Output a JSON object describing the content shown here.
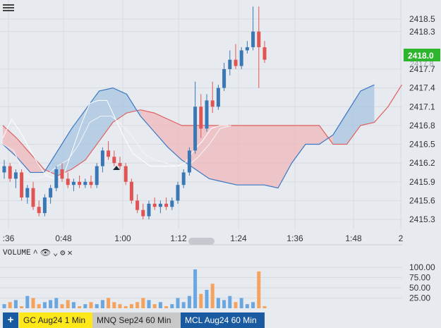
{
  "price_axis": {
    "ticks": [
      "2418.5",
      "2418.3",
      "2417.7",
      "2417.4",
      "2417.1",
      "2416.8",
      "2416.5",
      "2416.2",
      "2415.9",
      "2415.6",
      "2415.3"
    ],
    "current_price": "2418.0",
    "current_price_color": "#2db52d",
    "faint_label": "2417.8"
  },
  "time_axis": {
    "ticks": [
      ":36",
      "0:48",
      "1:00",
      "1:12",
      "1:24",
      "1:36",
      "1:48",
      "2"
    ]
  },
  "volume_panel": {
    "title": "VOLUME",
    "controls": [
      "up-caret",
      "eye",
      "down-caret",
      "gear",
      "close"
    ],
    "axis_ticks": [
      "100.00",
      "75.00",
      "50.00",
      "25.00"
    ]
  },
  "tabs": {
    "add_label": "+",
    "items": [
      {
        "label": "GC Aug24 1 Min",
        "active": true
      },
      {
        "label": "MNQ Sep24 60 Min",
        "active": false
      },
      {
        "label": "MCL Aug24 60 Min",
        "active": false
      }
    ]
  },
  "colors": {
    "bull": "#3a78b5",
    "bear": "#e05454",
    "cloud_bull": "#a7c4e0",
    "cloud_bear": "#efb8bc",
    "vol_blue": "#6aa6e0",
    "vol_orange": "#f5a35c",
    "background": "#e7eaee"
  },
  "chart_data": {
    "type": "candlestick",
    "y_ticks": [
      2415.3,
      2415.6,
      2415.9,
      2416.2,
      2416.5,
      2416.8,
      2417.1,
      2417.4,
      2417.7,
      2418.0,
      2418.3,
      2418.5
    ],
    "x_ticks": [
      ":36",
      "0:48",
      "1:00",
      "1:12",
      "1:24",
      "1:36",
      "1:48",
      "2"
    ],
    "candles": [
      [
        2416.05,
        2416.25,
        2415.95,
        2416.15
      ],
      [
        2416.15,
        2416.2,
        2415.9,
        2415.95
      ],
      [
        2415.95,
        2416.1,
        2415.8,
        2416.05
      ],
      [
        2416.05,
        2416.1,
        2415.6,
        2415.65
      ],
      [
        2415.65,
        2415.85,
        2415.55,
        2415.8
      ],
      [
        2415.8,
        2415.9,
        2415.45,
        2415.5
      ],
      [
        2415.5,
        2415.6,
        2415.35,
        2415.4
      ],
      [
        2415.4,
        2415.7,
        2415.35,
        2415.65
      ],
      [
        2415.65,
        2415.85,
        2415.55,
        2415.8
      ],
      [
        2415.8,
        2416.15,
        2415.75,
        2416.1
      ],
      [
        2416.1,
        2416.2,
        2415.9,
        2415.95
      ],
      [
        2415.95,
        2416.05,
        2415.8,
        2415.85
      ],
      [
        2415.85,
        2415.95,
        2415.75,
        2415.9
      ],
      [
        2415.9,
        2416.0,
        2415.8,
        2415.85
      ],
      [
        2415.85,
        2415.95,
        2415.8,
        2415.9
      ],
      [
        2415.9,
        2416.0,
        2415.8,
        2415.85
      ],
      [
        2415.85,
        2416.2,
        2415.8,
        2416.15
      ],
      [
        2416.15,
        2416.45,
        2416.05,
        2416.4
      ],
      [
        2416.4,
        2416.55,
        2416.25,
        2416.3
      ],
      [
        2416.3,
        2416.4,
        2416.15,
        2416.2
      ],
      [
        2416.2,
        2416.3,
        2416.1,
        2416.15
      ],
      [
        2416.15,
        2416.2,
        2415.85,
        2415.9
      ],
      [
        2415.9,
        2415.95,
        2415.55,
        2415.6
      ],
      [
        2415.6,
        2415.7,
        2415.4,
        2415.45
      ],
      [
        2415.45,
        2415.55,
        2415.3,
        2415.35
      ],
      [
        2415.35,
        2415.6,
        2415.3,
        2415.55
      ],
      [
        2415.55,
        2415.65,
        2415.45,
        2415.5
      ],
      [
        2415.5,
        2415.6,
        2415.4,
        2415.55
      ],
      [
        2415.55,
        2415.65,
        2415.45,
        2415.5
      ],
      [
        2415.5,
        2415.65,
        2415.45,
        2415.6
      ],
      [
        2415.6,
        2415.9,
        2415.55,
        2415.85
      ],
      [
        2415.85,
        2416.1,
        2415.8,
        2416.05
      ],
      [
        2416.05,
        2416.45,
        2416.0,
        2416.4
      ],
      [
        2416.4,
        2417.5,
        2416.35,
        2417.1
      ],
      [
        2417.1,
        2417.3,
        2416.6,
        2416.75
      ],
      [
        2416.75,
        2417.3,
        2416.7,
        2417.2
      ],
      [
        2417.2,
        2417.5,
        2417.0,
        2417.1
      ],
      [
        2417.1,
        2417.45,
        2417.05,
        2417.4
      ],
      [
        2417.4,
        2417.8,
        2417.35,
        2417.7
      ],
      [
        2417.7,
        2418.0,
        2417.6,
        2417.85
      ],
      [
        2417.85,
        2418.1,
        2417.7,
        2417.75
      ],
      [
        2417.75,
        2418.05,
        2417.7,
        2418.0
      ],
      [
        2418.0,
        2418.15,
        2417.95,
        2418.05
      ],
      [
        2418.05,
        2418.7,
        2418.0,
        2418.3
      ],
      [
        2418.3,
        2418.7,
        2417.4,
        2418.05
      ],
      [
        2418.05,
        2418.15,
        2417.8,
        2417.85
      ]
    ],
    "tenkan": [
      2416.6,
      2416.9,
      2416.7,
      2416.45,
      2416.2,
      2416.0,
      2415.95,
      2416.0,
      2416.4,
      2416.8,
      2417.15,
      2417.2,
      2417.2,
      2416.9,
      2416.6,
      2416.35,
      2416.25,
      2416.15,
      2416.15,
      2416.15,
      2416.15,
      2416.2,
      2416.4,
      2416.55,
      2416.75,
      2416.8,
      2416.8
    ],
    "kijun": [
      2416.5,
      2416.4,
      2416.0,
      2415.95,
      2416.0,
      2416.15,
      2416.25,
      2416.5,
      2416.85,
      2416.95,
      2416.95,
      2416.8,
      2416.6,
      2416.35,
      2416.25,
      2416.2,
      2416.15,
      2416.15,
      2416.3,
      2416.5,
      2416.75,
      2416.8
    ],
    "span_a": [
      2416.8,
      2416.6,
      2416.35,
      2416.1,
      2416.0,
      2416.1,
      2416.25,
      2416.55,
      2416.85,
      2417.0,
      2417.05,
      2417.0,
      2416.9,
      2416.8,
      2416.8,
      2416.8,
      2416.8,
      2416.8,
      2416.8,
      2416.8,
      2416.8,
      2416.8,
      2416.8,
      2416.8,
      2416.5,
      2416.5,
      2416.8,
      2416.85,
      2417.1,
      2417.45
    ],
    "span_b": [
      2416.5,
      2416.3,
      2416.05,
      2416.05,
      2416.4,
      2416.75,
      2417.05,
      2417.35,
      2417.4,
      2417.3,
      2416.95,
      2416.7,
      2416.45,
      2416.25,
      2416.1,
      2415.95,
      2415.9,
      2415.85,
      2415.85,
      2415.85,
      2415.8,
      2416.2,
      2416.5,
      2416.5,
      2416.65,
      2417.0,
      2417.35,
      2417.45
    ],
    "volume": [
      10,
      15,
      20,
      5,
      30,
      25,
      10,
      15,
      20,
      25,
      10,
      20,
      15,
      5,
      10,
      15,
      10,
      20,
      25,
      15,
      10,
      5,
      10,
      15,
      25,
      20,
      10,
      15,
      5,
      10,
      25,
      15,
      30,
      95,
      35,
      45,
      60,
      25,
      20,
      30,
      15,
      25,
      10,
      15,
      90,
      5
    ],
    "volume_axis": [
      25,
      50,
      75,
      100
    ]
  }
}
